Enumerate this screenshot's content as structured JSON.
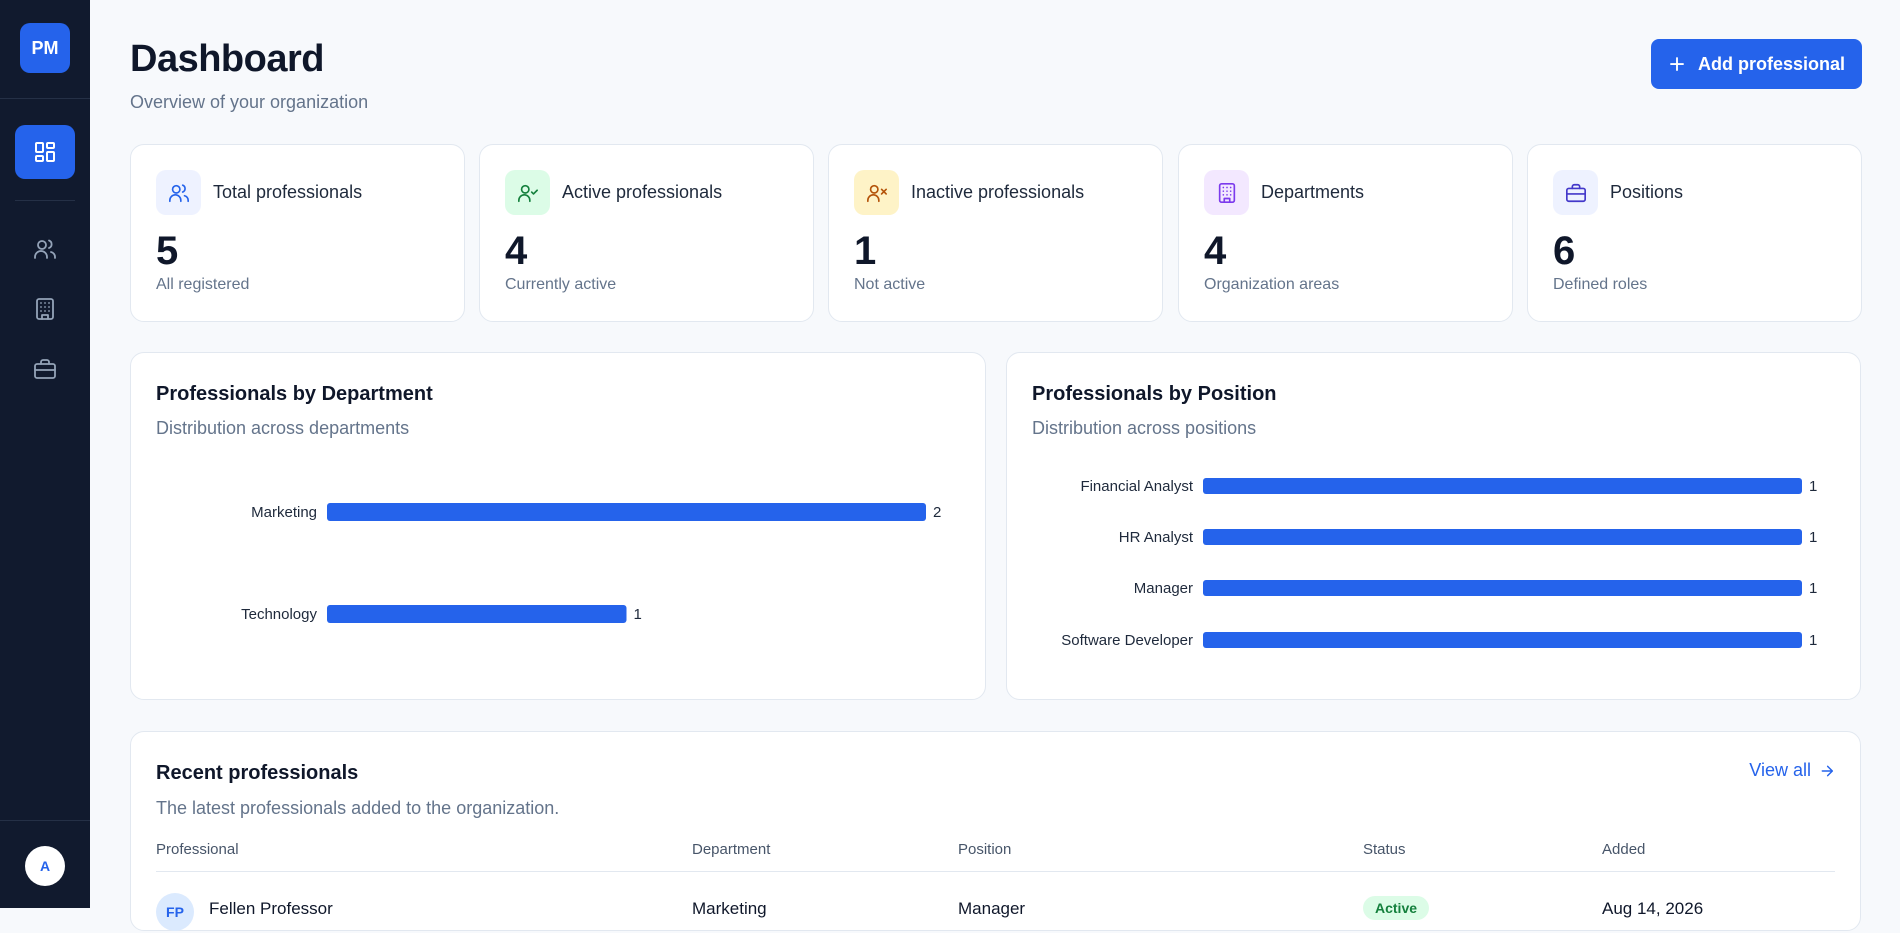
{
  "sidebar": {
    "logo": "PM",
    "avatar": "A",
    "nav": [
      {
        "name": "dashboard",
        "icon": "layout-grid-icon",
        "active": true
      },
      {
        "name": "professionals",
        "icon": "users-icon",
        "active": false
      },
      {
        "name": "departments",
        "icon": "building-icon",
        "active": false
      },
      {
        "name": "positions",
        "icon": "briefcase-icon",
        "active": false
      }
    ]
  },
  "header": {
    "title": "Dashboard",
    "subtitle": "Overview of your organization",
    "add_button": "Add professional"
  },
  "stats": [
    {
      "label": "Total professionals",
      "value": "5",
      "desc": "All registered",
      "icon": "users-icon",
      "icon_bg": "#eef2ff",
      "icon_color": "#2563eb"
    },
    {
      "label": "Active professionals",
      "value": "4",
      "desc": "Currently active",
      "icon": "user-check-icon",
      "icon_bg": "#dcfce7",
      "icon_color": "#15803d"
    },
    {
      "label": "Inactive professionals",
      "value": "1",
      "desc": "Not active",
      "icon": "user-x-icon",
      "icon_bg": "#fef3c7",
      "icon_color": "#b45309"
    },
    {
      "label": "Departments",
      "value": "4",
      "desc": "Organization areas",
      "icon": "building-icon",
      "icon_bg": "#f3e8ff",
      "icon_color": "#7c3aed"
    },
    {
      "label": "Positions",
      "value": "6",
      "desc": "Defined roles",
      "icon": "briefcase-icon",
      "icon_bg": "#eef2ff",
      "icon_color": "#4338ca"
    }
  ],
  "charts": {
    "department": {
      "title": "Professionals by Department",
      "subtitle": "Distribution across departments"
    },
    "position": {
      "title": "Professionals by Position",
      "subtitle": "Distribution across positions"
    }
  },
  "chart_data": [
    {
      "type": "bar",
      "orientation": "horizontal",
      "title": "Professionals by Department",
      "subtitle": "Distribution across departments",
      "categories": [
        "Marketing",
        "Technology"
      ],
      "values": [
        2,
        1
      ],
      "xlim": [
        0,
        2
      ],
      "bar_color": "#2563eb",
      "data_labels": true,
      "grid": false
    },
    {
      "type": "bar",
      "orientation": "horizontal",
      "title": "Professionals by Position",
      "subtitle": "Distribution across positions",
      "categories": [
        "Financial Analyst",
        "HR Analyst",
        "Manager",
        "Software Developer"
      ],
      "values": [
        1,
        1,
        1,
        1
      ],
      "xlim": [
        0,
        1
      ],
      "bar_color": "#2563eb",
      "data_labels": true,
      "grid": false
    }
  ],
  "recent": {
    "title": "Recent professionals",
    "subtitle": "The latest professionals added to the organization.",
    "view_all": "View all",
    "columns": [
      "Professional",
      "Department",
      "Position",
      "Status",
      "Added"
    ],
    "rows": [
      {
        "initials": "FP",
        "name": "Fellen Professor",
        "department": "Marketing",
        "position": "Manager",
        "status": "Active",
        "added": "Aug 14, 2026"
      }
    ]
  },
  "colors": {
    "accent": "#2563eb",
    "sidebar_bg": "#111a2e",
    "active_badge": "#15803d"
  }
}
